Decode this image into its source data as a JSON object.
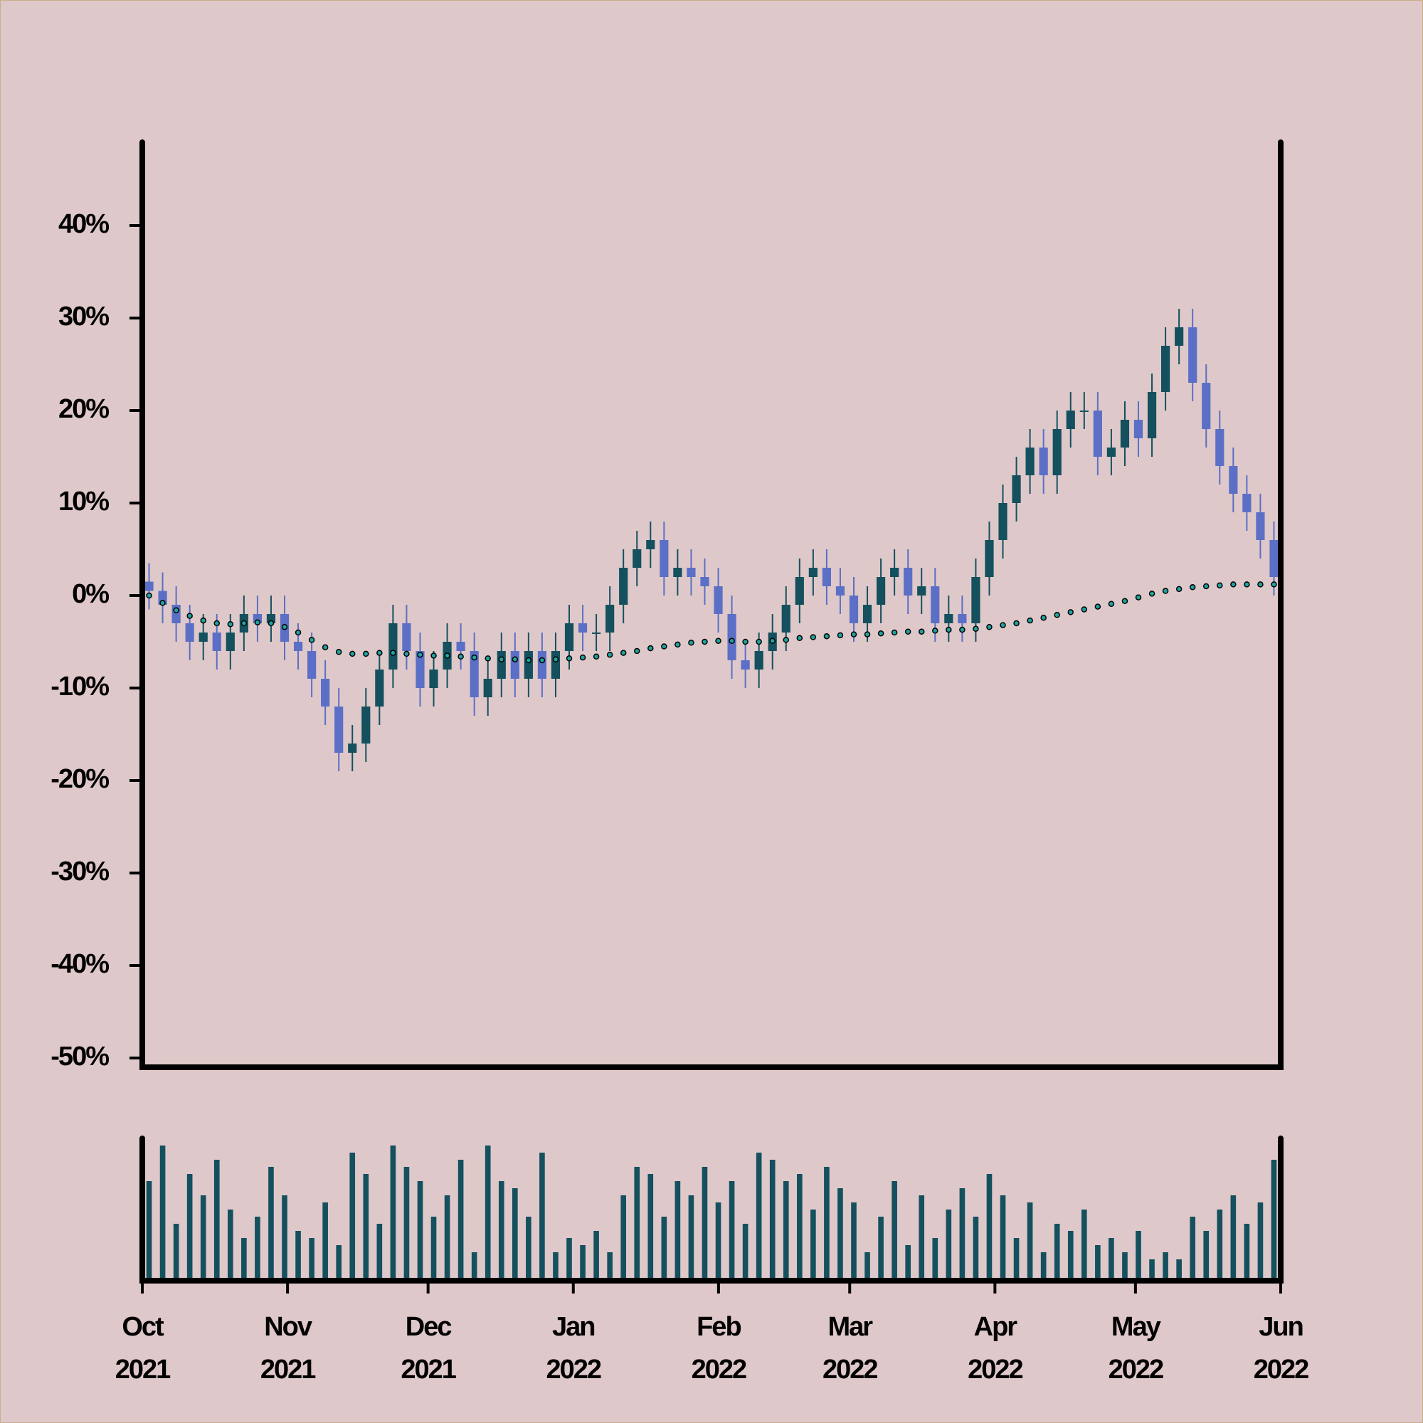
{
  "chart_data": {
    "type": "candlestick",
    "open": [
      1.5,
      0.5,
      -1,
      -3,
      -5,
      -4,
      -6,
      -4,
      -2,
      -3,
      -2,
      -5,
      -6,
      -9,
      -12,
      -17,
      -16,
      -12,
      -8,
      -3,
      -6,
      -10,
      -8,
      -5,
      -6,
      -11,
      -9,
      -6,
      -9,
      -6,
      -9,
      -6,
      -3,
      -4,
      -4,
      -1,
      3,
      5,
      6,
      2,
      3,
      2,
      1,
      -2,
      -7,
      -8,
      -6,
      -4,
      -1,
      2,
      3,
      1,
      0,
      -3,
      -1,
      2,
      3,
      0,
      1,
      -3,
      -2,
      -3,
      2,
      6,
      10,
      13,
      16,
      13,
      18,
      20,
      20,
      15,
      16,
      19,
      17,
      22,
      27,
      29,
      23,
      18,
      14,
      11,
      9,
      6
    ],
    "high": [
      3.5,
      2.5,
      1,
      -1,
      -2,
      -2,
      -2,
      0,
      0,
      0,
      0,
      -3,
      -4,
      -7,
      -10,
      -14,
      -10,
      -6,
      -1,
      -1,
      -4,
      -6,
      -3,
      -3,
      -4,
      -7,
      -4,
      -4,
      -4,
      -4,
      -4,
      -1,
      -1,
      -2,
      1,
      5,
      7,
      8,
      8,
      5,
      5,
      4,
      3,
      0,
      -5,
      -4,
      -2,
      1,
      4,
      5,
      5,
      3,
      2,
      1,
      4,
      5,
      5,
      3,
      3,
      0,
      0,
      4,
      8,
      12,
      15,
      18,
      18,
      20,
      22,
      22,
      22,
      18,
      21,
      21,
      24,
      29,
      31,
      31,
      25,
      20,
      16,
      13,
      11,
      8
    ],
    "low": [
      -1.5,
      -3,
      -5,
      -7,
      -7,
      -8,
      -8,
      -6,
      -5,
      -5,
      -7,
      -8,
      -11,
      -14,
      -19,
      -19,
      -18,
      -14,
      -10,
      -8,
      -12,
      -12,
      -10,
      -8,
      -13,
      -13,
      -11,
      -11,
      -11,
      -11,
      -11,
      -8,
      -6,
      -6,
      -6,
      -3,
      1,
      3,
      0,
      0,
      0,
      -1,
      -4,
      -9,
      -10,
      -10,
      -8,
      -6,
      -3,
      0,
      -1,
      -2,
      -5,
      -5,
      -3,
      0,
      -2,
      -2,
      -5,
      -5,
      -5,
      -5,
      0,
      4,
      8,
      11,
      11,
      11,
      16,
      18,
      13,
      13,
      14,
      15,
      15,
      20,
      25,
      21,
      16,
      12,
      9,
      7,
      4,
      0
    ],
    "close": [
      0.5,
      -1,
      -3,
      -5,
      -4,
      -6,
      -4,
      -2,
      -3,
      -2,
      -5,
      -6,
      -9,
      -12,
      -17,
      -16,
      -12,
      -8,
      -3,
      -6,
      -10,
      -8,
      -5,
      -6,
      -11,
      -9,
      -6,
      -9,
      -6,
      -9,
      -6,
      -3,
      -4,
      -4,
      -1,
      3,
      5,
      6,
      2,
      3,
      2,
      1,
      -2,
      -7,
      -8,
      -6,
      -4,
      -1,
      2,
      3,
      1,
      0,
      -3,
      -1,
      2,
      3,
      0,
      1,
      -3,
      -2,
      -3,
      2,
      6,
      10,
      13,
      16,
      13,
      18,
      20,
      20,
      15,
      16,
      19,
      17,
      22,
      27,
      29,
      23,
      18,
      14,
      11,
      9,
      6,
      2
    ],
    "moving_average": [
      0,
      -0.8,
      -1.6,
      -2.2,
      -2.7,
      -3,
      -3.1,
      -3,
      -2.9,
      -3,
      -3.4,
      -4,
      -4.8,
      -5.6,
      -6.1,
      -6.3,
      -6.3,
      -6.2,
      -6.2,
      -6.3,
      -6.4,
      -6.5,
      -6.5,
      -6.6,
      -6.7,
      -6.8,
      -6.9,
      -6.9,
      -7,
      -7,
      -6.9,
      -6.8,
      -6.7,
      -6.6,
      -6.4,
      -6.2,
      -6,
      -5.7,
      -5.5,
      -5.3,
      -5.1,
      -5,
      -4.9,
      -4.9,
      -5,
      -5,
      -4.9,
      -4.8,
      -4.6,
      -4.5,
      -4.4,
      -4.3,
      -4.2,
      -4.2,
      -4.1,
      -4,
      -3.9,
      -3.9,
      -3.8,
      -3.7,
      -3.7,
      -3.6,
      -3.4,
      -3.2,
      -3,
      -2.7,
      -2.4,
      -2.1,
      -1.8,
      -1.5,
      -1.2,
      -0.9,
      -0.6,
      -0.2,
      0.2,
      0.5,
      0.7,
      0.9,
      1,
      1.1,
      1.2,
      1.2,
      1.2,
      1.2
    ],
    "volume": [
      70,
      95,
      40,
      75,
      60,
      85,
      50,
      30,
      45,
      80,
      60,
      35,
      30,
      55,
      25,
      90,
      75,
      40,
      95,
      80,
      70,
      45,
      60,
      85,
      20,
      95,
      70,
      65,
      45,
      90,
      20,
      30,
      25,
      35,
      20,
      60,
      80,
      75,
      45,
      70,
      60,
      80,
      55,
      70,
      40,
      90,
      85,
      70,
      75,
      50,
      80,
      65,
      55,
      20,
      45,
      70,
      25,
      60,
      30,
      50,
      65,
      45,
      75,
      60,
      30,
      55,
      20,
      40,
      35,
      50,
      25,
      30,
      20,
      35,
      15,
      20,
      15,
      45,
      35,
      50,
      60,
      40,
      55,
      85
    ],
    "volume_ylim": [
      0,
      100
    ],
    "up_color": "#14505e",
    "down_color": "#5b6fc6",
    "ma_color": "#1fa3a0",
    "volume_color": "#14505e",
    "xlim": [
      "2021-10",
      "2022-06"
    ],
    "xticks": [
      {
        "value": "2021-10",
        "label": [
          "Oct",
          "2021"
        ]
      },
      {
        "value": "2021-11",
        "label": [
          "Nov",
          "2021"
        ]
      },
      {
        "value": "2021-12",
        "label": [
          "Dec",
          "2021"
        ]
      },
      {
        "value": "2022-01",
        "label": [
          "Jan",
          "2022"
        ]
      },
      {
        "value": "2022-02",
        "label": [
          "Feb",
          "2022"
        ]
      },
      {
        "value": "2022-03",
        "label": [
          "Mar",
          "2022"
        ]
      },
      {
        "value": "2022-04",
        "label": [
          "Apr",
          "2022"
        ]
      },
      {
        "value": "2022-05",
        "label": [
          "May",
          "2022"
        ]
      },
      {
        "value": "2022-06",
        "label": [
          "Jun",
          "2022"
        ]
      }
    ],
    "ylim": [
      -51,
      49
    ],
    "yticks": [
      {
        "value": -50,
        "label": "-50%"
      },
      {
        "value": -40,
        "label": "-40%"
      },
      {
        "value": -30,
        "label": "-30%"
      },
      {
        "value": -20,
        "label": "-20%"
      },
      {
        "value": -10,
        "label": "-10%"
      },
      {
        "value": 0,
        "label": "0%"
      },
      {
        "value": 10,
        "label": "10%"
      },
      {
        "value": 20,
        "label": "20%"
      },
      {
        "value": 30,
        "label": "30%"
      },
      {
        "value": 40,
        "label": "40%"
      }
    ]
  }
}
